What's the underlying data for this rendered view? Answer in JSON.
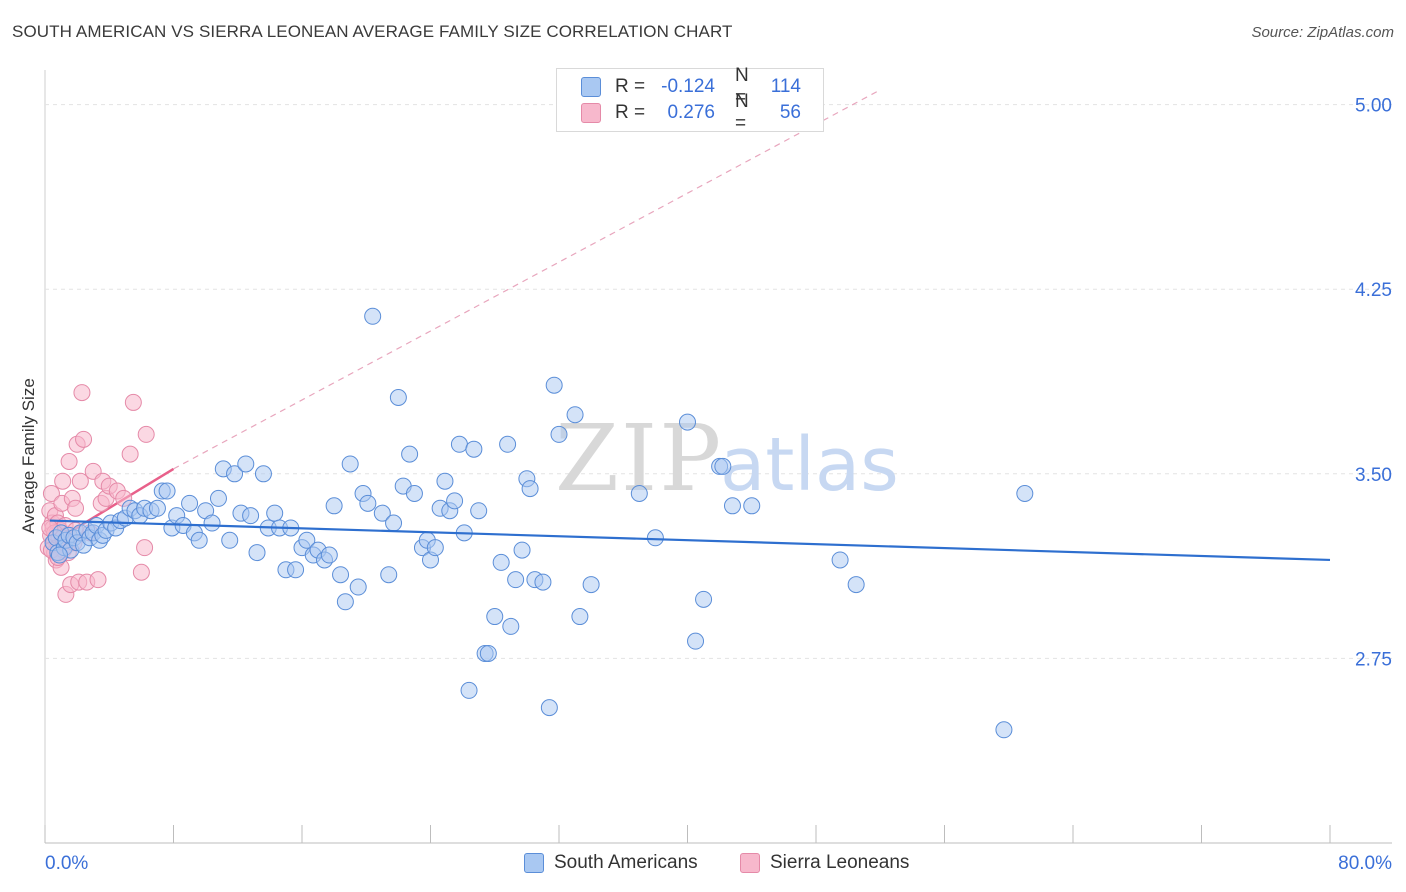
{
  "title": "SOUTH AMERICAN VS SIERRA LEONEAN AVERAGE FAMILY SIZE CORRELATION CHART",
  "source": "Source: ZipAtlas.com",
  "watermark": {
    "zip": "ZIP",
    "atlas": "atlas"
  },
  "legend": {
    "rows": [
      {
        "r_label": "R =",
        "r_value": "-0.124",
        "n_label": "N =",
        "n_value": "114"
      },
      {
        "r_label": "R =",
        "r_value": "0.276",
        "n_label": "N =",
        "n_value": "56"
      }
    ]
  },
  "colors": {
    "blue_fill": "#a9c8f2",
    "blue_stroke": "#5b8ed8",
    "blue_line": "#2e6fcf",
    "pink_fill": "#f7b8cc",
    "pink_stroke": "#e58aa8",
    "pink_line": "#e8608a",
    "axis_label": "#3a6fd8",
    "grid": "#e3e3e3"
  },
  "chart_data": {
    "type": "scatter",
    "title": "SOUTH AMERICAN VS SIERRA LEONEAN AVERAGE FAMILY SIZE CORRELATION CHART",
    "ylabel": "Average Family Size",
    "xlabel": "",
    "xlim": [
      0,
      80
    ],
    "ylim": [
      2.0,
      5.1
    ],
    "y_ticks": [
      2.75,
      3.5,
      4.25,
      5.0
    ],
    "y_tick_labels": [
      "2.75",
      "3.50",
      "4.25",
      "5.00"
    ],
    "x_tick_labels": [
      "0.0%",
      "80.0%"
    ],
    "grid": true,
    "legend_position": "top-center",
    "series": [
      {
        "name": "South Americans",
        "trend": {
          "x": [
            0.3,
            80
          ],
          "y": [
            3.31,
            3.15
          ]
        },
        "points": [
          [
            0.5,
            3.22
          ],
          [
            0.7,
            3.24
          ],
          [
            0.8,
            3.18
          ],
          [
            1.0,
            3.26
          ],
          [
            1.2,
            3.2
          ],
          [
            1.3,
            3.23
          ],
          [
            1.5,
            3.25
          ],
          [
            1.6,
            3.19
          ],
          [
            1.8,
            3.24
          ],
          [
            2.0,
            3.22
          ],
          [
            2.2,
            3.26
          ],
          [
            2.4,
            3.21
          ],
          [
            2.6,
            3.27
          ],
          [
            2.8,
            3.24
          ],
          [
            3.0,
            3.26
          ],
          [
            3.2,
            3.29
          ],
          [
            3.4,
            3.23
          ],
          [
            3.6,
            3.25
          ],
          [
            3.8,
            3.27
          ],
          [
            4.1,
            3.3
          ],
          [
            4.4,
            3.28
          ],
          [
            4.7,
            3.31
          ],
          [
            5.0,
            3.32
          ],
          [
            5.3,
            3.36
          ],
          [
            5.6,
            3.35
          ],
          [
            5.9,
            3.33
          ],
          [
            6.2,
            3.36
          ],
          [
            6.6,
            3.35
          ],
          [
            7.0,
            3.36
          ],
          [
            7.3,
            3.43
          ],
          [
            7.6,
            3.43
          ],
          [
            7.9,
            3.28
          ],
          [
            8.2,
            3.33
          ],
          [
            8.6,
            3.29
          ],
          [
            9.0,
            3.38
          ],
          [
            9.3,
            3.26
          ],
          [
            9.6,
            3.23
          ],
          [
            10.0,
            3.35
          ],
          [
            10.4,
            3.3
          ],
          [
            10.8,
            3.4
          ],
          [
            11.1,
            3.52
          ],
          [
            11.5,
            3.23
          ],
          [
            11.8,
            3.5
          ],
          [
            12.2,
            3.34
          ],
          [
            12.5,
            3.54
          ],
          [
            12.8,
            3.33
          ],
          [
            13.2,
            3.18
          ],
          [
            13.6,
            3.5
          ],
          [
            13.9,
            3.28
          ],
          [
            14.3,
            3.34
          ],
          [
            14.6,
            3.28
          ],
          [
            15.0,
            3.11
          ],
          [
            15.3,
            3.28
          ],
          [
            15.6,
            3.11
          ],
          [
            16.0,
            3.2
          ],
          [
            16.3,
            3.23
          ],
          [
            16.7,
            3.17
          ],
          [
            17.0,
            3.19
          ],
          [
            17.4,
            3.15
          ],
          [
            17.7,
            3.17
          ],
          [
            18.0,
            3.37
          ],
          [
            18.4,
            3.09
          ],
          [
            18.7,
            2.98
          ],
          [
            19.0,
            3.54
          ],
          [
            19.5,
            3.04
          ],
          [
            19.8,
            3.42
          ],
          [
            20.1,
            3.38
          ],
          [
            20.4,
            4.14
          ],
          [
            21.0,
            3.34
          ],
          [
            21.4,
            3.09
          ],
          [
            21.7,
            3.3
          ],
          [
            22.0,
            3.81
          ],
          [
            22.3,
            3.45
          ],
          [
            22.7,
            3.58
          ],
          [
            23.0,
            3.42
          ],
          [
            23.5,
            3.2
          ],
          [
            23.8,
            3.23
          ],
          [
            24.0,
            3.15
          ],
          [
            24.3,
            3.2
          ],
          [
            24.6,
            3.36
          ],
          [
            24.9,
            3.47
          ],
          [
            25.2,
            3.35
          ],
          [
            25.5,
            3.39
          ],
          [
            25.8,
            3.62
          ],
          [
            26.1,
            3.26
          ],
          [
            26.4,
            2.62
          ],
          [
            26.7,
            3.6
          ],
          [
            27.0,
            3.35
          ],
          [
            27.4,
            2.77
          ],
          [
            27.6,
            2.77
          ],
          [
            28.0,
            2.92
          ],
          [
            28.4,
            3.14
          ],
          [
            28.8,
            3.62
          ],
          [
            29.0,
            2.88
          ],
          [
            29.3,
            3.07
          ],
          [
            29.7,
            3.19
          ],
          [
            30.0,
            3.48
          ],
          [
            30.2,
            3.44
          ],
          [
            30.5,
            3.07
          ],
          [
            31.0,
            3.06
          ],
          [
            31.4,
            2.55
          ],
          [
            31.7,
            3.86
          ],
          [
            32.0,
            3.66
          ],
          [
            33.0,
            3.74
          ],
          [
            33.3,
            2.92
          ],
          [
            34.0,
            3.05
          ],
          [
            37.0,
            3.42
          ],
          [
            38.0,
            3.24
          ],
          [
            40.0,
            3.71
          ],
          [
            40.5,
            2.82
          ],
          [
            41.0,
            2.99
          ],
          [
            42.0,
            3.53
          ],
          [
            42.2,
            3.53
          ],
          [
            42.8,
            3.37
          ],
          [
            44.0,
            3.37
          ],
          [
            49.5,
            3.15
          ],
          [
            50.5,
            3.05
          ],
          [
            61.0,
            3.42
          ],
          [
            59.7,
            2.46
          ],
          [
            0.9,
            3.17
          ]
        ]
      },
      {
        "name": "Sierra Leoneans",
        "trend": {
          "x": [
            0.2,
            8.0
          ],
          "y": [
            3.21,
            3.52
          ]
        },
        "trend_ext": {
          "x": [
            8.0,
            52.0
          ],
          "y": [
            3.52,
            5.06
          ]
        },
        "points": [
          [
            0.2,
            3.2
          ],
          [
            0.3,
            3.35
          ],
          [
            0.35,
            3.25
          ],
          [
            0.4,
            3.42
          ],
          [
            0.45,
            3.3
          ],
          [
            0.5,
            3.28
          ],
          [
            0.55,
            3.22
          ],
          [
            0.6,
            3.18
          ],
          [
            0.65,
            3.33
          ],
          [
            0.7,
            3.15
          ],
          [
            0.75,
            3.26
          ],
          [
            0.8,
            3.3
          ],
          [
            0.85,
            3.21
          ],
          [
            0.9,
            3.24
          ],
          [
            0.95,
            3.27
          ],
          [
            1.0,
            3.12
          ],
          [
            1.05,
            3.38
          ],
          [
            1.1,
            3.47
          ],
          [
            1.15,
            3.19
          ],
          [
            1.2,
            3.23
          ],
          [
            1.25,
            3.29
          ],
          [
            1.3,
            3.01
          ],
          [
            1.35,
            3.21
          ],
          [
            1.4,
            3.25
          ],
          [
            1.45,
            3.18
          ],
          [
            1.5,
            3.55
          ],
          [
            1.6,
            3.05
          ],
          [
            1.7,
            3.4
          ],
          [
            1.8,
            3.22
          ],
          [
            1.9,
            3.27
          ],
          [
            2.0,
            3.62
          ],
          [
            2.1,
            3.06
          ],
          [
            2.2,
            3.47
          ],
          [
            2.3,
            3.83
          ],
          [
            2.4,
            3.64
          ],
          [
            2.6,
            3.06
          ],
          [
            2.8,
            3.26
          ],
          [
            3.0,
            3.51
          ],
          [
            3.3,
            3.07
          ],
          [
            3.5,
            3.38
          ],
          [
            3.6,
            3.47
          ],
          [
            3.8,
            3.4
          ],
          [
            4.0,
            3.45
          ],
          [
            4.5,
            3.43
          ],
          [
            4.9,
            3.4
          ],
          [
            5.3,
            3.58
          ],
          [
            5.5,
            3.79
          ],
          [
            6.2,
            3.2
          ],
          [
            6.0,
            3.1
          ],
          [
            0.6,
            3.26
          ],
          [
            1.1,
            3.24
          ],
          [
            0.4,
            3.19
          ],
          [
            0.3,
            3.28
          ],
          [
            1.9,
            3.36
          ],
          [
            0.8,
            3.16
          ],
          [
            6.3,
            3.66
          ]
        ]
      }
    ]
  }
}
